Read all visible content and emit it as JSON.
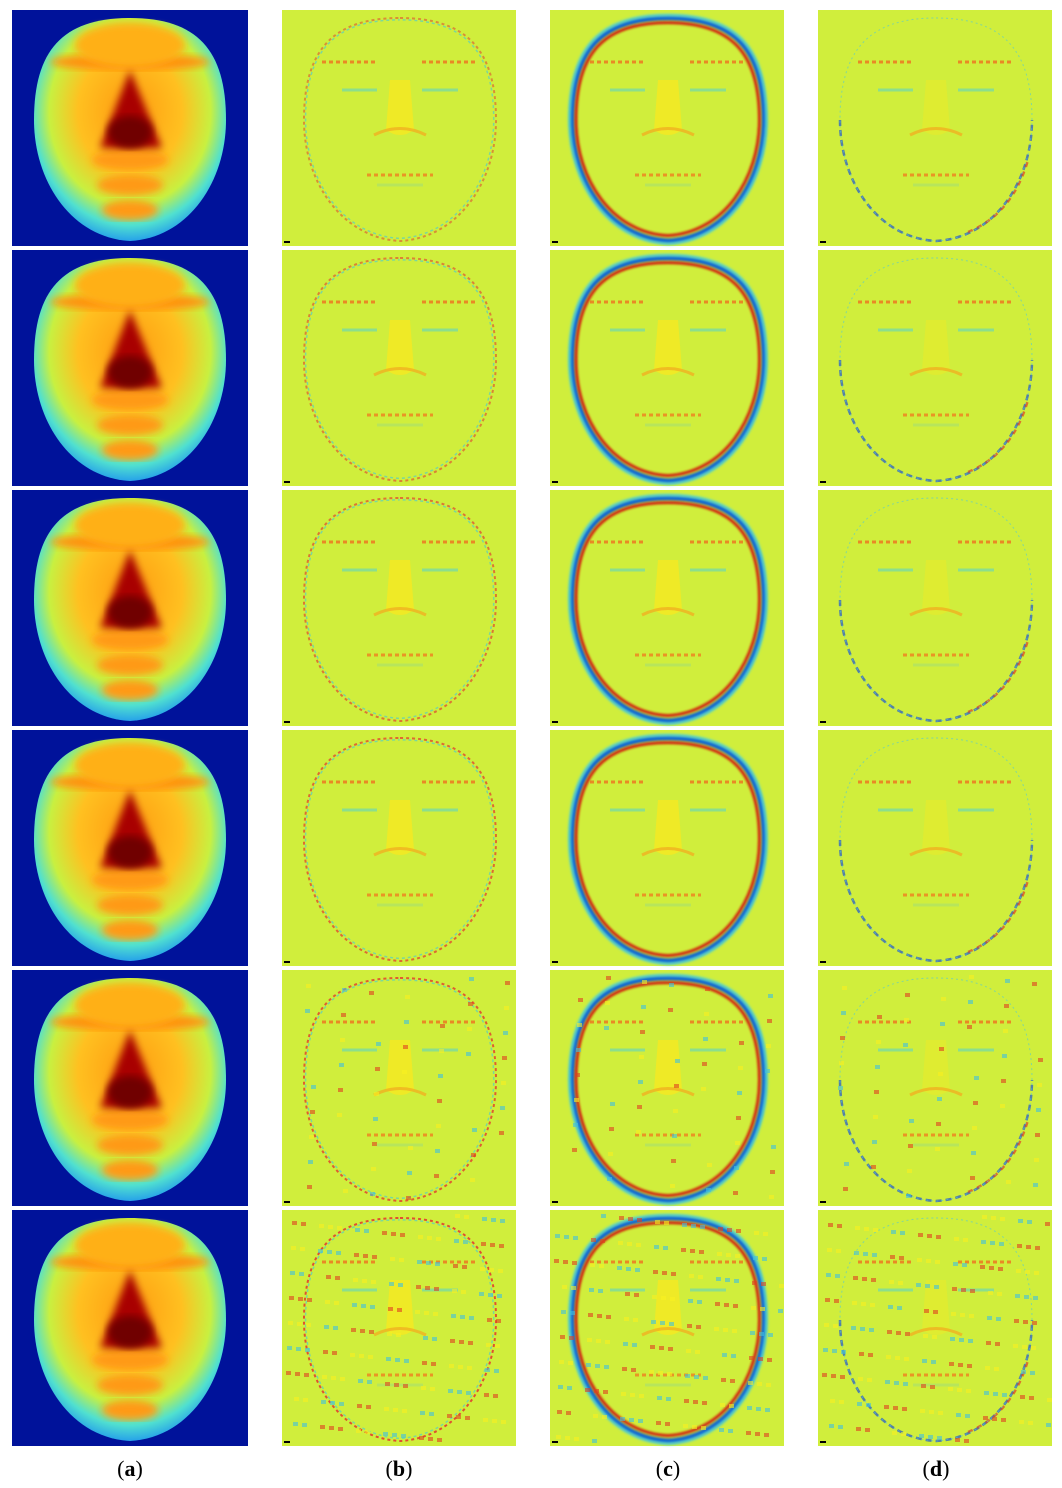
{
  "captions": [
    {
      "prefix": "(",
      "letter": "a",
      "suffix": ")"
    },
    {
      "prefix": "(",
      "letter": "b",
      "suffix": ")"
    },
    {
      "prefix": "(",
      "letter": "c",
      "suffix": ")"
    },
    {
      "prefix": "(",
      "letter": "d",
      "suffix": ")"
    }
  ]
}
